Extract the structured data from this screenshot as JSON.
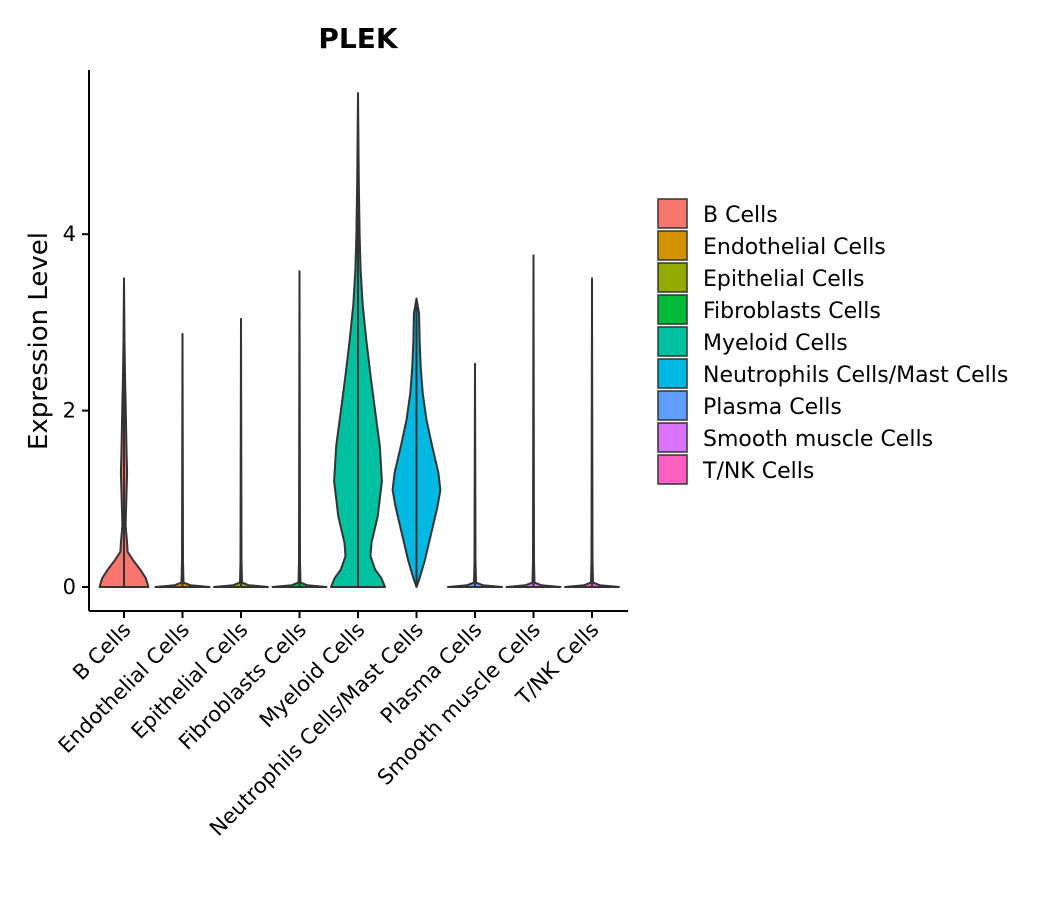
{
  "chart_data": {
    "type": "violin",
    "title": "PLEK",
    "xlabel": "",
    "ylabel": "Expression Level",
    "ylim": [
      -0.28,
      5.9
    ],
    "yticks": [
      0,
      2,
      4
    ],
    "categories": [
      "B Cells",
      "Endothelial Cells",
      "Epithelial Cells",
      "Fibroblasts Cells",
      "Myeloid Cells",
      "Neutrophils Cells/Mast Cells",
      "Plasma Cells",
      "Smooth muscle Cells",
      "T/NK Cells"
    ],
    "colors": [
      "#F8766D",
      "#D39200",
      "#93AA00",
      "#00BA38",
      "#00C19F",
      "#00B9E3",
      "#619CFF",
      "#DB72FB",
      "#FF61C3"
    ],
    "series": [
      {
        "name": "B Cells",
        "max": 3.5,
        "density": [
          [
            0.0,
            0.47
          ],
          [
            0.1,
            0.42
          ],
          [
            0.2,
            0.31
          ],
          [
            0.3,
            0.18
          ],
          [
            0.4,
            0.07
          ],
          [
            0.5,
            0.06
          ],
          [
            0.7,
            0.03
          ],
          [
            0.9,
            0.04
          ],
          [
            1.1,
            0.05
          ],
          [
            1.3,
            0.06
          ],
          [
            1.5,
            0.05
          ],
          [
            1.8,
            0.04
          ],
          [
            2.1,
            0.03
          ],
          [
            2.4,
            0.02
          ],
          [
            2.8,
            0.01
          ],
          [
            3.5,
            0.0
          ]
        ]
      },
      {
        "name": "Endothelial Cells",
        "max": 2.87,
        "density": [
          [
            0.0,
            0.52
          ],
          [
            0.02,
            0.15
          ],
          [
            0.05,
            0.02
          ],
          [
            0.3,
            0.01
          ],
          [
            2.87,
            0.0
          ]
        ]
      },
      {
        "name": "Epithelial Cells",
        "max": 3.04,
        "density": [
          [
            0.0,
            0.52
          ],
          [
            0.02,
            0.15
          ],
          [
            0.05,
            0.02
          ],
          [
            0.3,
            0.01
          ],
          [
            3.04,
            0.0
          ]
        ]
      },
      {
        "name": "Fibroblasts Cells",
        "max": 3.58,
        "density": [
          [
            0.0,
            0.52
          ],
          [
            0.02,
            0.15
          ],
          [
            0.05,
            0.02
          ],
          [
            0.3,
            0.01
          ],
          [
            3.58,
            0.0
          ]
        ]
      },
      {
        "name": "Myeloid Cells",
        "max": 5.6,
        "density": [
          [
            0.0,
            0.52
          ],
          [
            0.1,
            0.45
          ],
          [
            0.2,
            0.33
          ],
          [
            0.35,
            0.24
          ],
          [
            0.5,
            0.26
          ],
          [
            0.8,
            0.38
          ],
          [
            1.2,
            0.46
          ],
          [
            1.6,
            0.42
          ],
          [
            2.0,
            0.33
          ],
          [
            2.4,
            0.24
          ],
          [
            2.8,
            0.16
          ],
          [
            3.2,
            0.09
          ],
          [
            3.6,
            0.05
          ],
          [
            4.0,
            0.03
          ],
          [
            4.6,
            0.015
          ],
          [
            5.6,
            0.0
          ]
        ]
      },
      {
        "name": "Neutrophils Cells/Mast Cells",
        "max": 3.27,
        "density": [
          [
            0.0,
            0.0
          ],
          [
            0.1,
            0.06
          ],
          [
            0.3,
            0.16
          ],
          [
            0.6,
            0.28
          ],
          [
            0.9,
            0.4
          ],
          [
            1.1,
            0.46
          ],
          [
            1.3,
            0.42
          ],
          [
            1.6,
            0.3
          ],
          [
            1.9,
            0.19
          ],
          [
            2.2,
            0.12
          ],
          [
            2.5,
            0.08
          ],
          [
            2.8,
            0.06
          ],
          [
            3.1,
            0.05
          ],
          [
            3.27,
            0.0
          ]
        ]
      },
      {
        "name": "Plasma Cells",
        "max": 2.53,
        "density": [
          [
            0.0,
            0.52
          ],
          [
            0.02,
            0.15
          ],
          [
            0.05,
            0.02
          ],
          [
            0.3,
            0.01
          ],
          [
            2.53,
            0.0
          ]
        ]
      },
      {
        "name": "Smooth muscle Cells",
        "max": 3.76,
        "density": [
          [
            0.0,
            0.52
          ],
          [
            0.02,
            0.15
          ],
          [
            0.05,
            0.02
          ],
          [
            0.3,
            0.01
          ],
          [
            3.76,
            0.0
          ]
        ]
      },
      {
        "name": "T/NK Cells",
        "max": 3.5,
        "density": [
          [
            0.0,
            0.52
          ],
          [
            0.02,
            0.15
          ],
          [
            0.05,
            0.02
          ],
          [
            0.3,
            0.01
          ],
          [
            3.5,
            0.0
          ]
        ]
      }
    ],
    "legend": {
      "position": "right",
      "items": [
        "B Cells",
        "Endothelial Cells",
        "Epithelial Cells",
        "Fibroblasts Cells",
        "Myeloid Cells",
        "Neutrophils Cells/Mast Cells",
        "Plasma Cells",
        "Smooth muscle Cells",
        "T/NK Cells"
      ]
    }
  }
}
